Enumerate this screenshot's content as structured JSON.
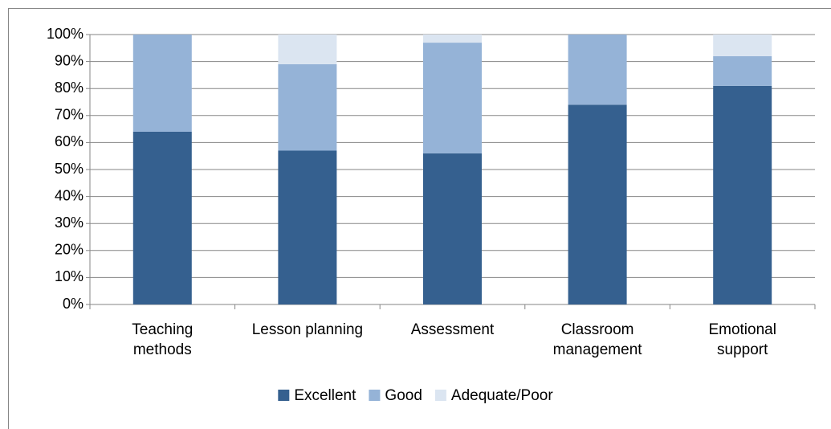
{
  "chart_data": {
    "type": "stacked_bar_100",
    "categories": [
      "Teaching\nmethods",
      "Lesson planning",
      "Assessment",
      "Classroom\nmanagement",
      "Emotional\nsupport"
    ],
    "series": [
      {
        "name": "Excellent",
        "color": "#35608f",
        "values": [
          64,
          57,
          56,
          74,
          81
        ]
      },
      {
        "name": "Good",
        "color": "#95b3d7",
        "values": [
          36,
          32,
          41,
          26,
          11
        ]
      },
      {
        "name": "Adequate/Poor",
        "color": "#dbe5f1",
        "values": [
          0,
          11,
          3,
          0,
          8
        ]
      }
    ],
    "ylim": [
      0,
      100
    ],
    "yticks": [
      {
        "value": 0,
        "label": "0%"
      },
      {
        "value": 10,
        "label": "10%"
      },
      {
        "value": 20,
        "label": "20%"
      },
      {
        "value": 30,
        "label": "30%"
      },
      {
        "value": 40,
        "label": "40%"
      },
      {
        "value": 50,
        "label": "50%"
      },
      {
        "value": 60,
        "label": "60%"
      },
      {
        "value": 70,
        "label": "70%"
      },
      {
        "value": 80,
        "label": "80%"
      },
      {
        "value": 90,
        "label": "90%"
      },
      {
        "value": 100,
        "label": "100%"
      }
    ],
    "grid": true,
    "legend": "bottom"
  }
}
